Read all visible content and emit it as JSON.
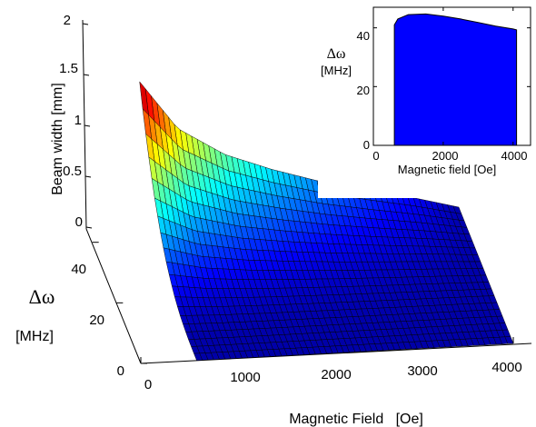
{
  "chart_data": [
    {
      "type": "surface",
      "xlabel": "Magnetic Field   [Oe]",
      "ylabel_symbol": "Δω",
      "ylabel_unit": "[MHz]",
      "zlabel": "Beam width [mm]",
      "x_ticks": [
        "0",
        "1000",
        "2000",
        "3000",
        "4000"
      ],
      "y_ticks": [
        "0",
        "20",
        "40"
      ],
      "z_ticks": [
        "0",
        "0.5",
        "1",
        "1.5",
        "2"
      ],
      "xlim": [
        0,
        4000
      ],
      "ylim": [
        0,
        45
      ],
      "zlim": [
        0,
        2
      ],
      "colormap": "jet",
      "surface": {
        "magnetic_field_oe": [
          600,
          1000,
          1500,
          2000,
          2500,
          3000,
          3500,
          4000
        ],
        "beam_width_at_max_dw_mm": [
          1.4,
          0.92,
          0.64,
          0.47,
          0.33,
          0.22,
          0.12,
          0.0
        ],
        "delta_omega_max_mhz": 45
      }
    },
    {
      "type": "area",
      "xlabel": "Magnetic field [Oe]",
      "ylabel_symbol": "Δω",
      "ylabel_unit": "[MHz]",
      "x_ticks": [
        "0",
        "2000",
        "4000"
      ],
      "y_ticks": [
        "0",
        "20",
        "40"
      ],
      "xlim": [
        0,
        4500
      ],
      "ylim": [
        0,
        47
      ],
      "color": "#0000ff",
      "x": [
        600,
        700,
        1000,
        1500,
        2000,
        2500,
        3000,
        3500,
        4000,
        4100
      ],
      "y": [
        41,
        43,
        44.5,
        44.7,
        44,
        43,
        41.8,
        40.6,
        39.6,
        39.3
      ]
    }
  ]
}
